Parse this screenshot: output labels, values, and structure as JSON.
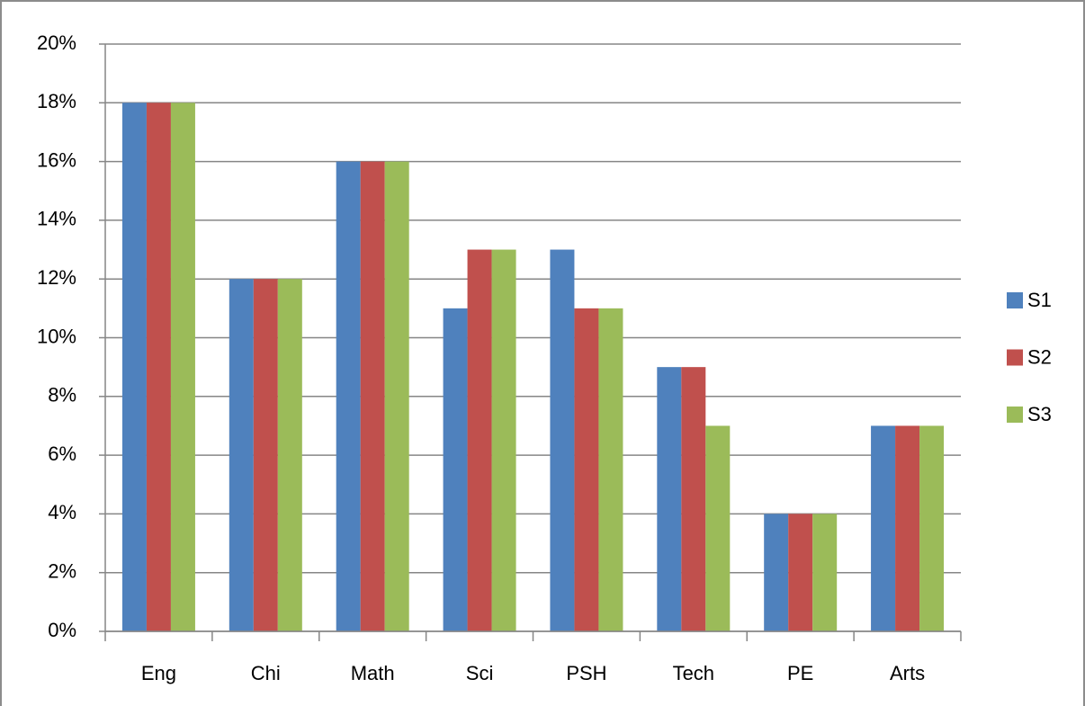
{
  "chart_data": {
    "type": "bar",
    "categories": [
      "Eng",
      "Chi",
      "Math",
      "Sci",
      "PSH",
      "Tech",
      "PE",
      "Arts"
    ],
    "series": [
      {
        "name": "S1",
        "color": "#4f81bd",
        "values": [
          18,
          12,
          16,
          11,
          13,
          9,
          4,
          7
        ]
      },
      {
        "name": "S2",
        "color": "#c0504d",
        "values": [
          18,
          12,
          16,
          13,
          11,
          9,
          4,
          7
        ]
      },
      {
        "name": "S3",
        "color": "#9bbb59",
        "values": [
          18,
          12,
          16,
          13,
          11,
          7,
          4,
          7
        ]
      }
    ],
    "ylim": [
      0,
      20
    ],
    "yticks": [
      {
        "value": 0,
        "label": "0%"
      },
      {
        "value": 2,
        "label": "2%"
      },
      {
        "value": 4,
        "label": "4%"
      },
      {
        "value": 6,
        "label": "6%"
      },
      {
        "value": 8,
        "label": "8%"
      },
      {
        "value": 10,
        "label": "10%"
      },
      {
        "value": 12,
        "label": "12%"
      },
      {
        "value": 14,
        "label": "14%"
      },
      {
        "value": 16,
        "label": "16%"
      },
      {
        "value": 18,
        "label": "18%"
      },
      {
        "value": 20,
        "label": "20%"
      }
    ],
    "grid": true,
    "legend": "right"
  }
}
